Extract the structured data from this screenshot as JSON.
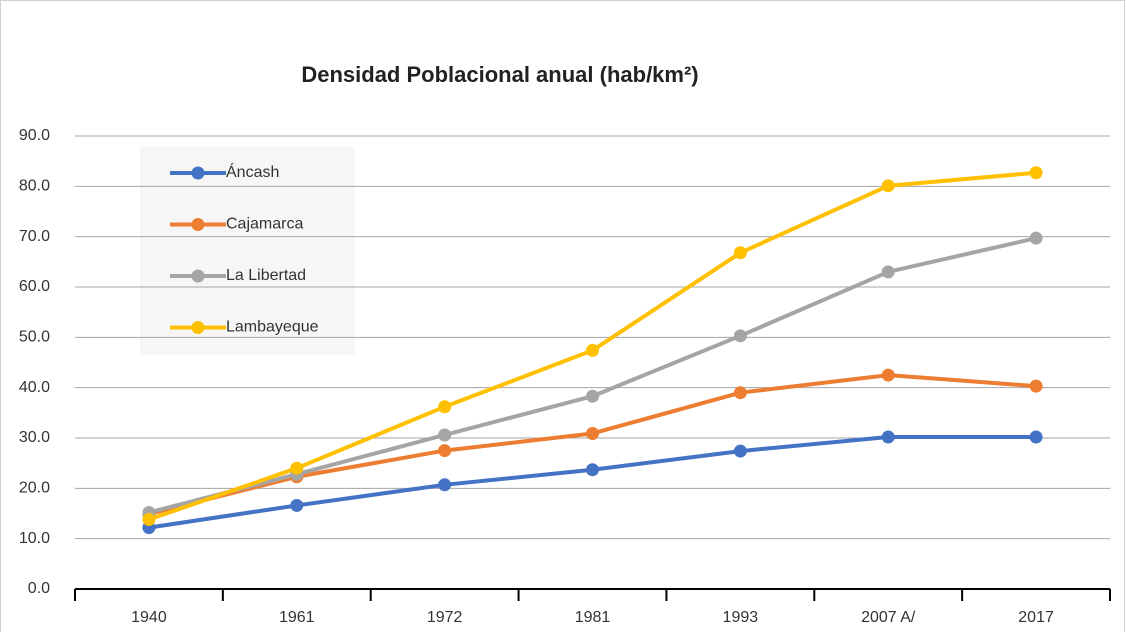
{
  "chart_data": {
    "type": "line",
    "title": "Densidad Poblacional anual (hab/km²)",
    "categories": [
      "1940",
      "1961",
      "1972",
      "1981",
      "1993",
      "2007 A/",
      "2017"
    ],
    "series": [
      {
        "name": "Áncash",
        "color": "#4472c4",
        "values": [
          12.2,
          16.6,
          20.7,
          23.7,
          27.4,
          30.2,
          30.2
        ]
      },
      {
        "name": "Cajamarca",
        "color": "#ed7d31",
        "values": [
          14.9,
          22.3,
          27.5,
          30.9,
          39.0,
          42.5,
          40.3
        ]
      },
      {
        "name": "La Libertad",
        "color": "#a5a5a5",
        "values": [
          15.2,
          22.8,
          30.6,
          38.3,
          50.3,
          63.0,
          69.7
        ]
      },
      {
        "name": "Lambayeque",
        "color": "#ffc000",
        "values": [
          13.8,
          24.0,
          36.2,
          47.4,
          66.8,
          80.1,
          82.7
        ]
      }
    ],
    "ylim": [
      0,
      90
    ],
    "yticks": [
      {
        "value": 0,
        "label": "0.0"
      },
      {
        "value": 10,
        "label": "10.0"
      },
      {
        "value": 20,
        "label": "20.0"
      },
      {
        "value": 30,
        "label": "30.0"
      },
      {
        "value": 40,
        "label": "40.0"
      },
      {
        "value": 50,
        "label": "50.0"
      },
      {
        "value": 60,
        "label": "60.0"
      },
      {
        "value": 70,
        "label": "70.0"
      },
      {
        "value": 80,
        "label": "80.0"
      },
      {
        "value": 90,
        "label": "90.0"
      }
    ],
    "grid": true,
    "legend": "upper left"
  }
}
